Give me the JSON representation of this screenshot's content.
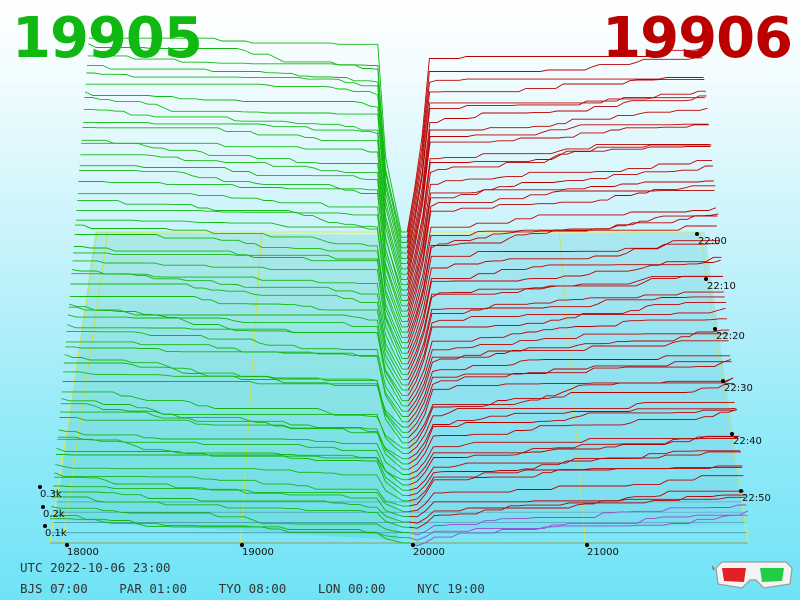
{
  "header": {
    "left_price": "19905",
    "right_price": "19906",
    "left_color": "#11b811",
    "right_color": "#bb0000"
  },
  "footer": {
    "utc_label": "UTC",
    "utc_datetime": "2022-10-06 23:00",
    "timezones": [
      {
        "code": "BJS",
        "time": "07:00"
      },
      {
        "code": "PAR",
        "time": "01:00"
      },
      {
        "code": "TYO",
        "time": "08:00"
      },
      {
        "code": "LON",
        "time": "00:00"
      },
      {
        "code": "NYC",
        "time": "19:00"
      }
    ]
  },
  "icons": {
    "glasses": "3d-glasses-icon"
  },
  "chart_data": {
    "type": "area",
    "view": "3d-perspective order-book depth history",
    "x_ticks": [
      "18000",
      "19000",
      "20000",
      "21000"
    ],
    "depth_ticks": [
      "0.1k",
      "0.2k",
      "0.3k"
    ],
    "time_ticks": [
      "22:00",
      "22:10",
      "22:20",
      "22:30",
      "22:40",
      "22:50"
    ],
    "series": [
      {
        "name": "19905",
        "side": "bid",
        "color": "#11b811"
      },
      {
        "name": "19906",
        "side": "ask",
        "color": "#bb0000"
      }
    ],
    "colors": {
      "frame": "#e8e84a",
      "tick": "#000000"
    }
  }
}
